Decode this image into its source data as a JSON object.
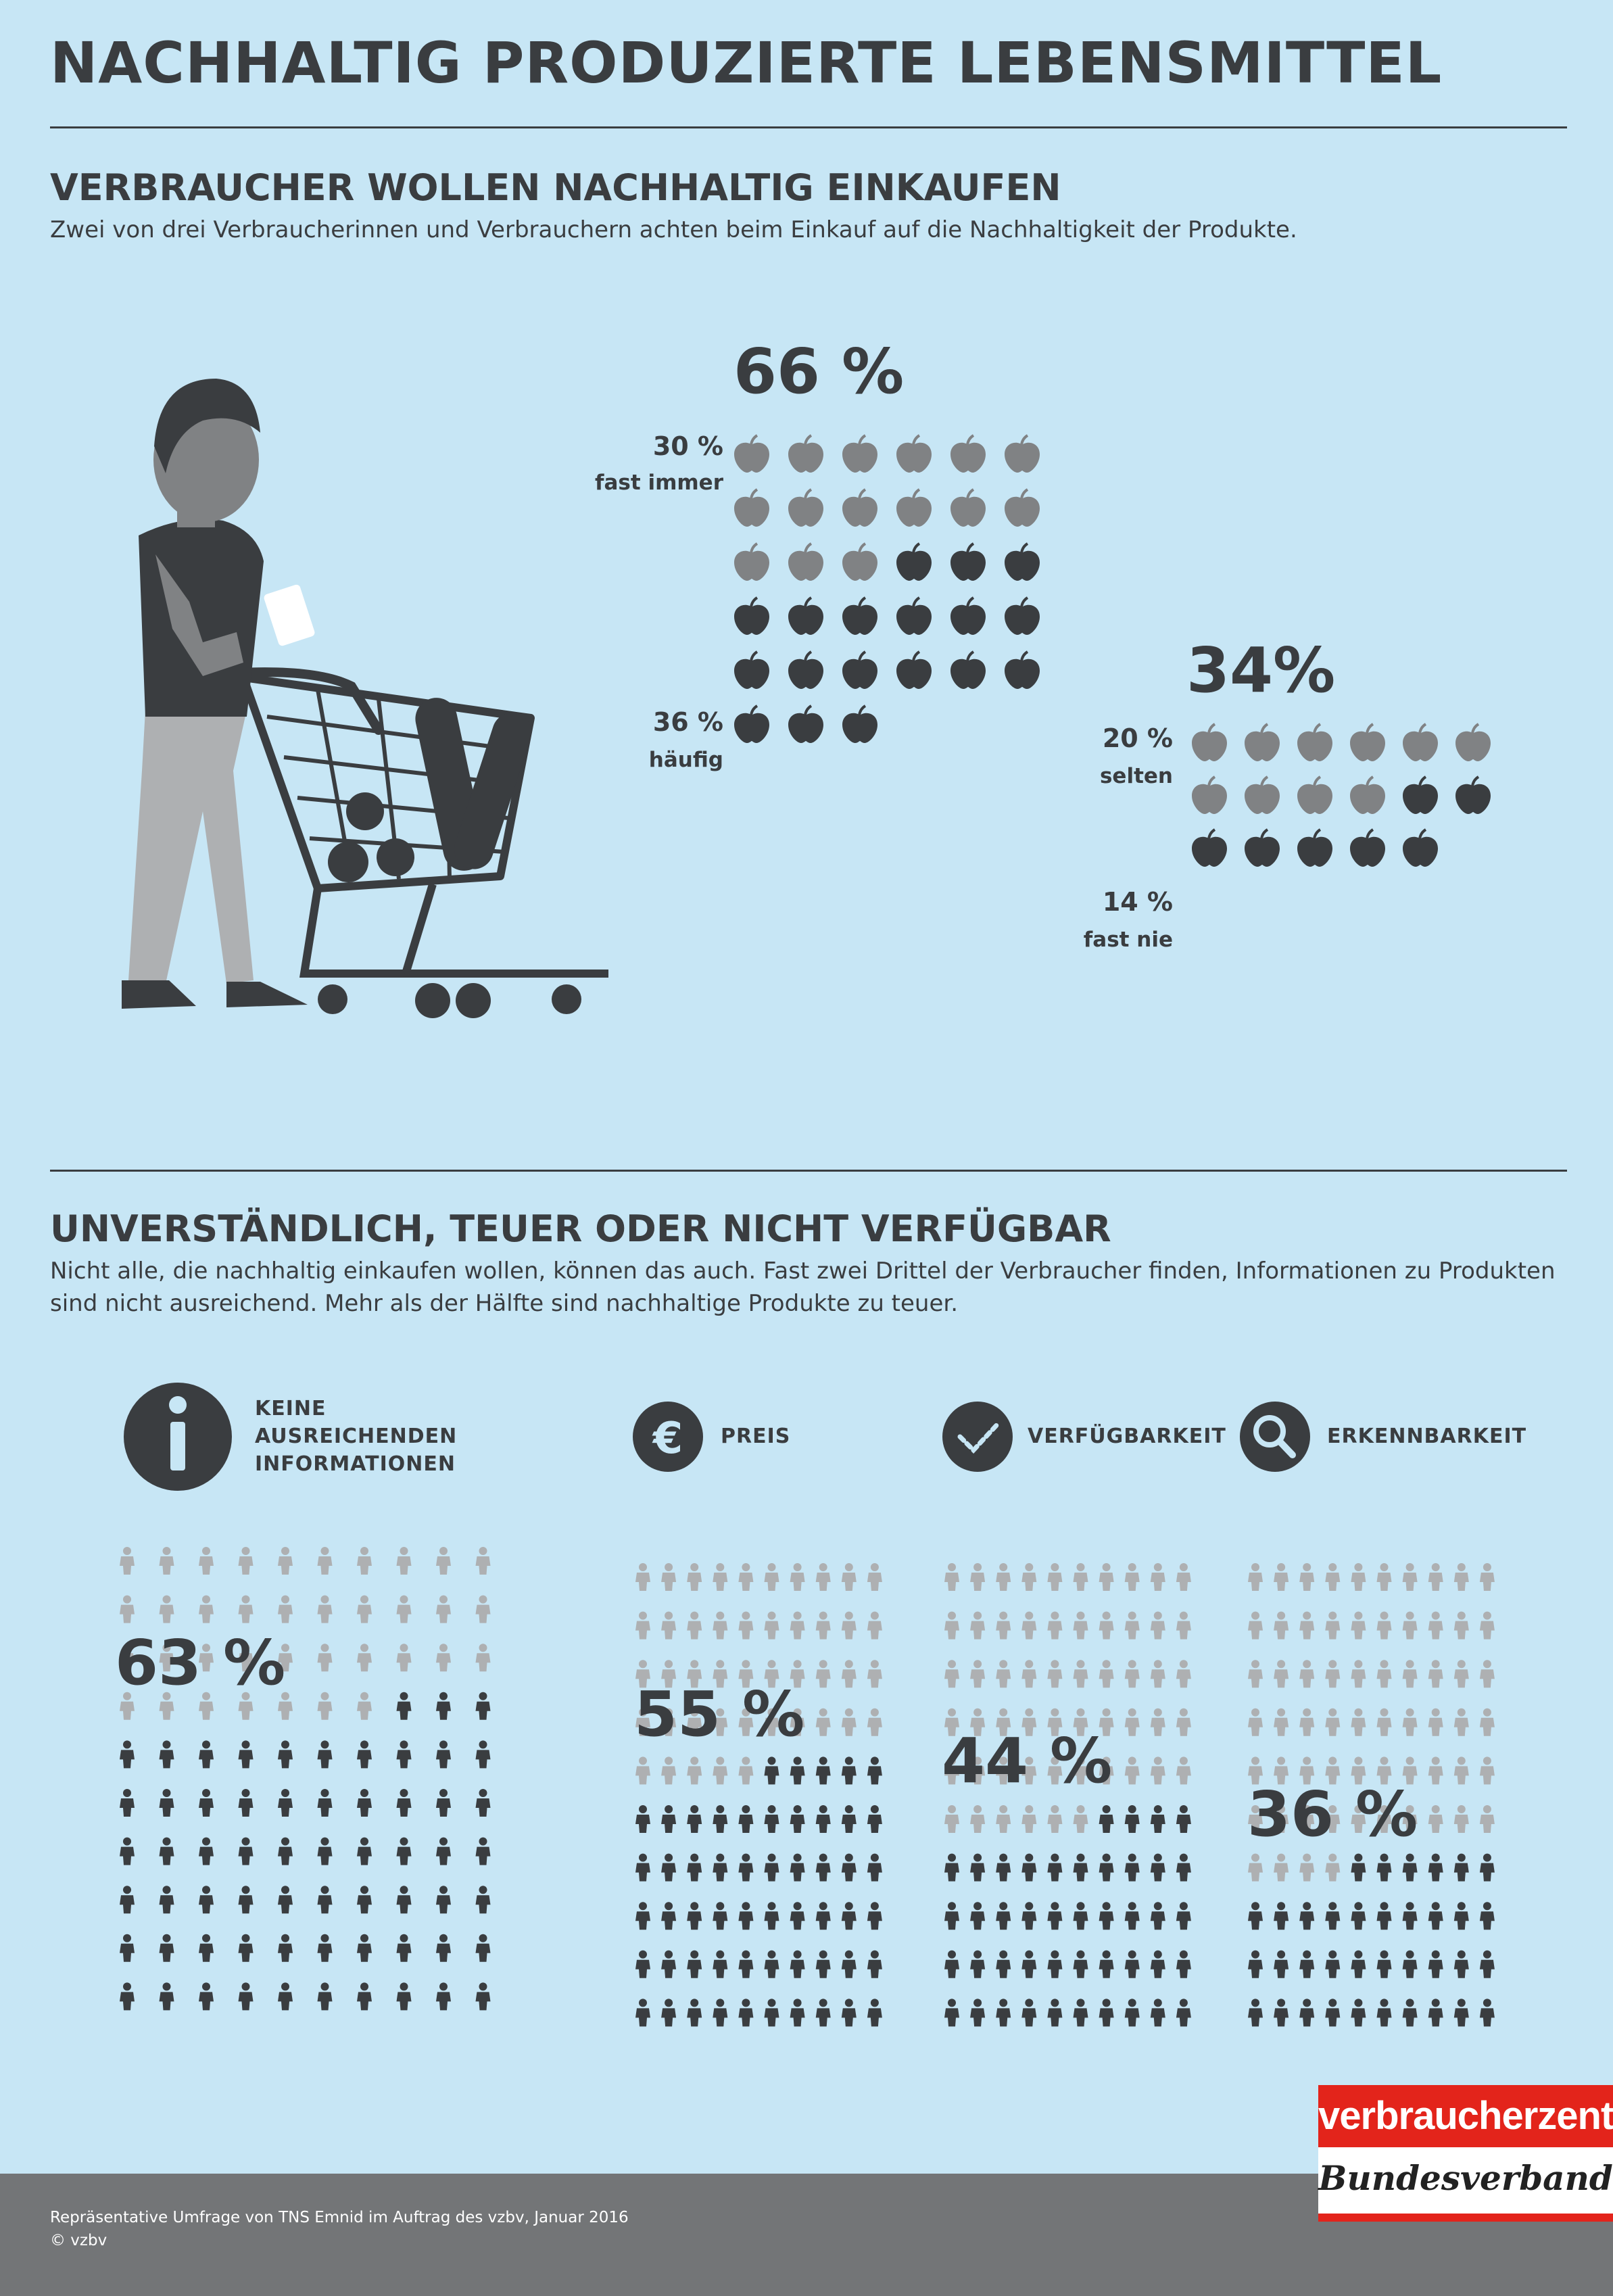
{
  "title": "NACHHALTIG PRODUZIERTE LEBENSMITTEL",
  "section1": {
    "heading": "VERBRAUCHER WOLLEN NACHHALTIG EINKAUFEN",
    "text": "Zwei von drei Verbraucherinnen und Verbrauchern achten beim Einkauf auf die Nachhaltigkeit der Produkte."
  },
  "section2": {
    "heading": "UNVERSTÄNDLICH, TEUER ODER NICHT VERFÜGBAR",
    "text": "Nicht alle, die nachhaltig einkaufen wollen, können das auch. Fast zwei Drittel der Verbraucher finden, Informationen zu Produkten sind nicht ausreichend. Mehr als der Hälfte sind nachhaltige Produkte zu teuer."
  },
  "colors": {
    "background": "#c7e6f5",
    "dark": "#3a3d40",
    "mid": "#808284",
    "light": "#aeb0b2",
    "footer": "#737577",
    "brand_red": "#e3241b"
  },
  "chart_data": [
    {
      "type": "pictogram",
      "icon": "apple-icon",
      "total_label": "66 %",
      "total": 66,
      "segments": [
        {
          "label": "fast immer",
          "value_label": "30 %",
          "value": 30,
          "color": "#808284"
        },
        {
          "label": "häufig",
          "value_label": "36 %",
          "value": 36,
          "color": "#3a3d40"
        }
      ]
    },
    {
      "type": "pictogram",
      "icon": "apple-icon",
      "total_label": "34%",
      "total": 34,
      "segments": [
        {
          "label": "selten",
          "value_label": "20 %",
          "value": 20,
          "color": "#808284"
        },
        {
          "label": "fast nie",
          "value_label": "14 %",
          "value": 14,
          "color": "#3a3d40"
        }
      ]
    },
    {
      "type": "pictogram",
      "icon": "person-icon",
      "title": "KEINE AUSREICHENDEN INFORMATIONEN",
      "category_icon": "info-icon",
      "value_label": "63 %",
      "value": 63,
      "total": 100
    },
    {
      "type": "pictogram",
      "icon": "person-icon",
      "title": "PREIS",
      "category_icon": "euro-icon",
      "value_label": "55 %",
      "value": 55,
      "total": 100
    },
    {
      "type": "pictogram",
      "icon": "person-icon",
      "title": "VERFÜGBARKEIT",
      "category_icon": "check-icon",
      "value_label": "44 %",
      "value": 44,
      "total": 100
    },
    {
      "type": "pictogram",
      "icon": "person-icon",
      "title": "ERKENNBARKEIT",
      "category_icon": "search-icon",
      "value_label": "36 %",
      "value": 36,
      "total": 100
    }
  ],
  "footer": {
    "source": "Repräsentative Umfrage von TNS Emnid im Auftrag des vzbv, Januar 2016",
    "copyright": "© vzbv"
  },
  "logo": {
    "top": "verbraucherzentrale",
    "bottom": "Bundesverband"
  }
}
